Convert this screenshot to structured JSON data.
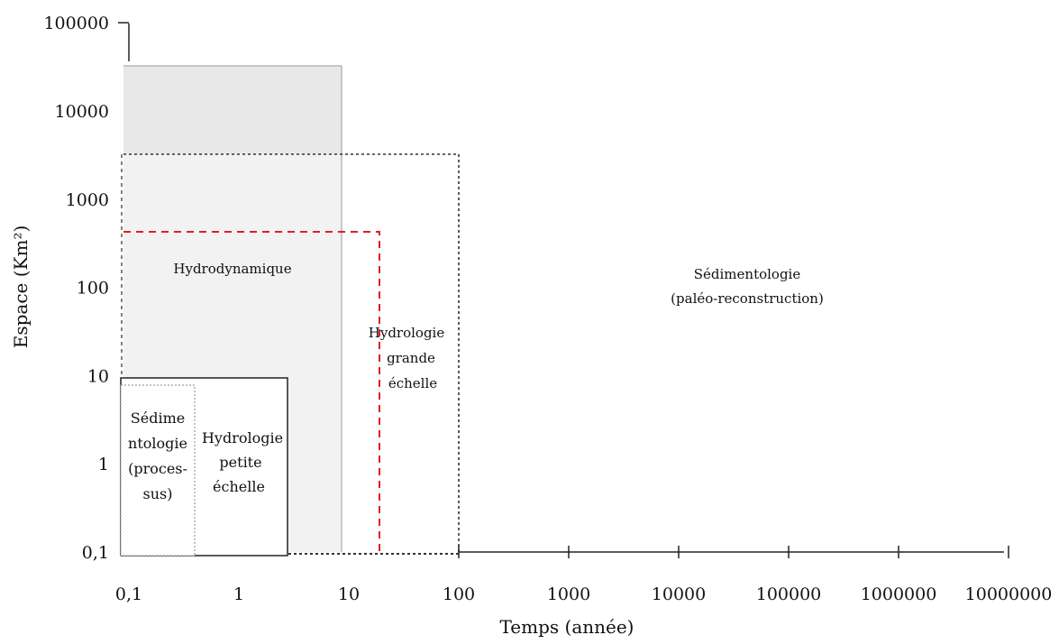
{
  "chart_data": {
    "type": "box-diagram",
    "xlabel": "Temps (année)",
    "ylabel": "Espace (Km²)",
    "x_scale": "log",
    "y_scale": "log",
    "xlim": [
      0.1,
      10000000
    ],
    "ylim": [
      0.1,
      100000
    ],
    "x_ticks": [
      "0,1",
      "1",
      "10",
      "100",
      "1000",
      "10000",
      "100000",
      "1000000",
      "10000000"
    ],
    "y_ticks": [
      "0,1",
      "1",
      "10",
      "100",
      "1000",
      "10000",
      "100000"
    ],
    "regions": [
      {
        "id": "hydrodynamique",
        "lines": [
          "Hydrodynamique"
        ],
        "x_range": [
          0.1,
          9
        ],
        "y_range": [
          0.1,
          30000
        ],
        "style": "grey-fill"
      },
      {
        "id": "sedimentologie-paleo",
        "lines": [
          "Sédimentologie",
          "(paléo-reconstruction)"
        ],
        "x_range": [
          0.1,
          100
        ],
        "y_range": [
          0.1,
          3000
        ],
        "style": "dotted"
      },
      {
        "id": "hydrologie-grande",
        "lines": [
          "Hydrologie",
          "grande",
          "échelle"
        ],
        "x_range": [
          0.1,
          20
        ],
        "y_range": [
          0.1,
          400
        ],
        "style": "red-dashed"
      },
      {
        "id": "hydrologie-petite",
        "lines": [
          "Hydrologie",
          "petite",
          "échelle"
        ],
        "x_range": [
          0.1,
          3
        ],
        "y_range": [
          0.1,
          9
        ],
        "style": "solid"
      },
      {
        "id": "sedimentologie-processus",
        "lines": [
          "Sédime",
          "ntologie",
          "(proces-",
          "sus)"
        ],
        "x_range": [
          0.1,
          0.4
        ],
        "y_range": [
          0.1,
          7
        ],
        "style": "thin-dotted"
      }
    ]
  },
  "colors": {
    "grey_fill": "#ebebeb",
    "grey_fill_light": "#f3f3f3",
    "red_dashed": "#e02020",
    "axis": "#222222"
  }
}
